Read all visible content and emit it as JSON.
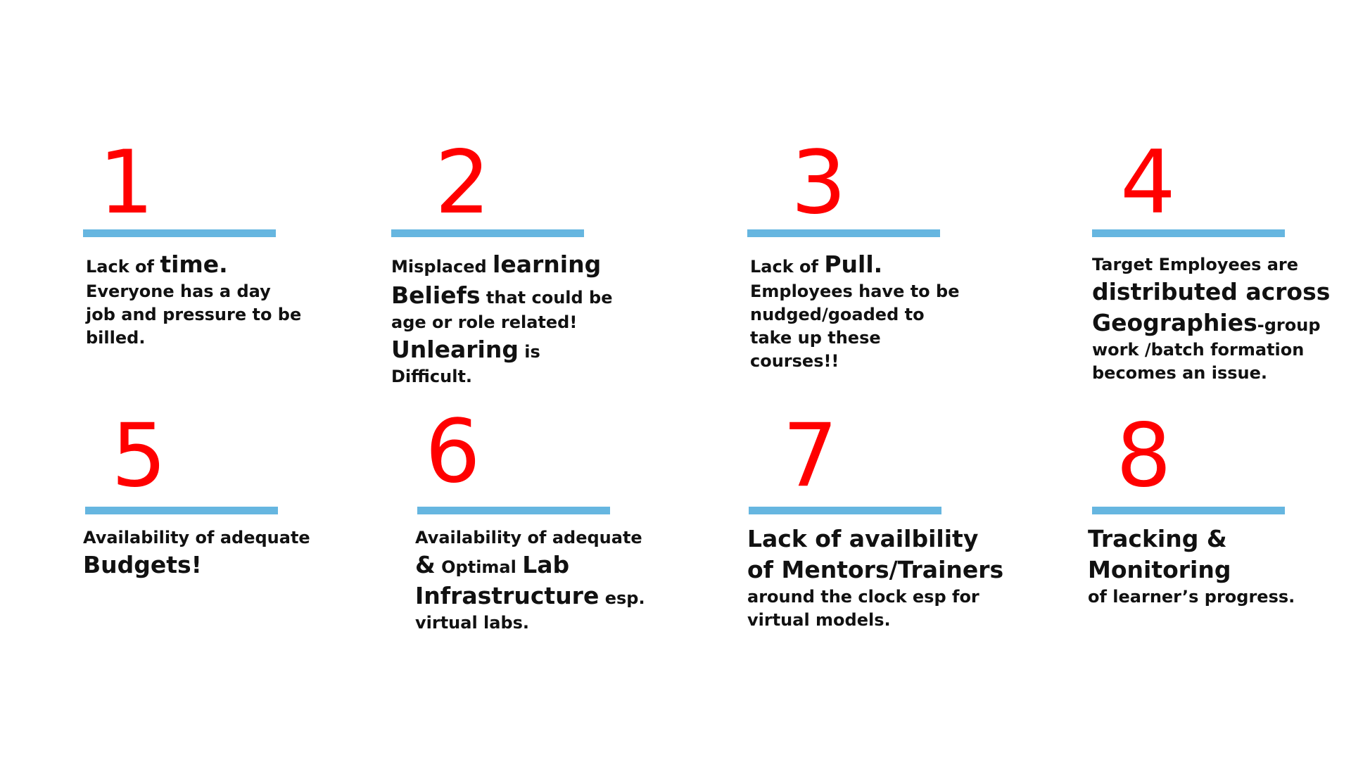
{
  "colors": {
    "number": "#ff0000",
    "rule": "#66b6e0",
    "text": "#111111",
    "background": "#ffffff"
  },
  "items": [
    {
      "number": "1",
      "lines": [
        [
          "Lack of ",
          "time."
        ],
        [
          "Everyone has a day"
        ],
        [
          "job and pressure to be"
        ],
        [
          "billed."
        ]
      ]
    },
    {
      "number": "2",
      "lines": [
        [
          "Misplaced ",
          "learning"
        ],
        [
          "Beliefs",
          " that could be"
        ],
        [
          "age or role related!"
        ],
        [
          "Unlearing",
          " is"
        ],
        [
          "Difficult."
        ]
      ]
    },
    {
      "number": "3",
      "lines": [
        [
          "Lack of ",
          "Pull."
        ],
        [
          "Employees have to be"
        ],
        [
          "nudged/goaded to"
        ],
        [
          "take up these"
        ],
        [
          "courses!!"
        ]
      ]
    },
    {
      "number": "4",
      "lines": [
        [
          "Target Employees are"
        ],
        [
          "distributed across"
        ],
        [
          "Geographies",
          "-group"
        ],
        [
          "work /batch formation"
        ],
        [
          "becomes an issue."
        ]
      ]
    },
    {
      "number": "5",
      "lines": [
        [
          "Availability of adequate"
        ],
        [
          "Budgets!"
        ]
      ]
    },
    {
      "number": "6",
      "lines": [
        [
          "Availability of adequate"
        ],
        [
          "&",
          " Optimal ",
          "Lab"
        ],
        [
          "Infrastructure",
          " esp."
        ],
        [
          "virtual labs."
        ]
      ]
    },
    {
      "number": "7",
      "lines": [
        [
          "Lack of availbility"
        ],
        [
          "of Mentors/Trainers"
        ],
        [
          "around the clock esp for"
        ],
        [
          "virtual models."
        ]
      ]
    },
    {
      "number": "8",
      "lines": [
        [
          "Tracking &"
        ],
        [
          "Monitoring"
        ],
        [
          "of learner’s progress."
        ]
      ]
    }
  ]
}
